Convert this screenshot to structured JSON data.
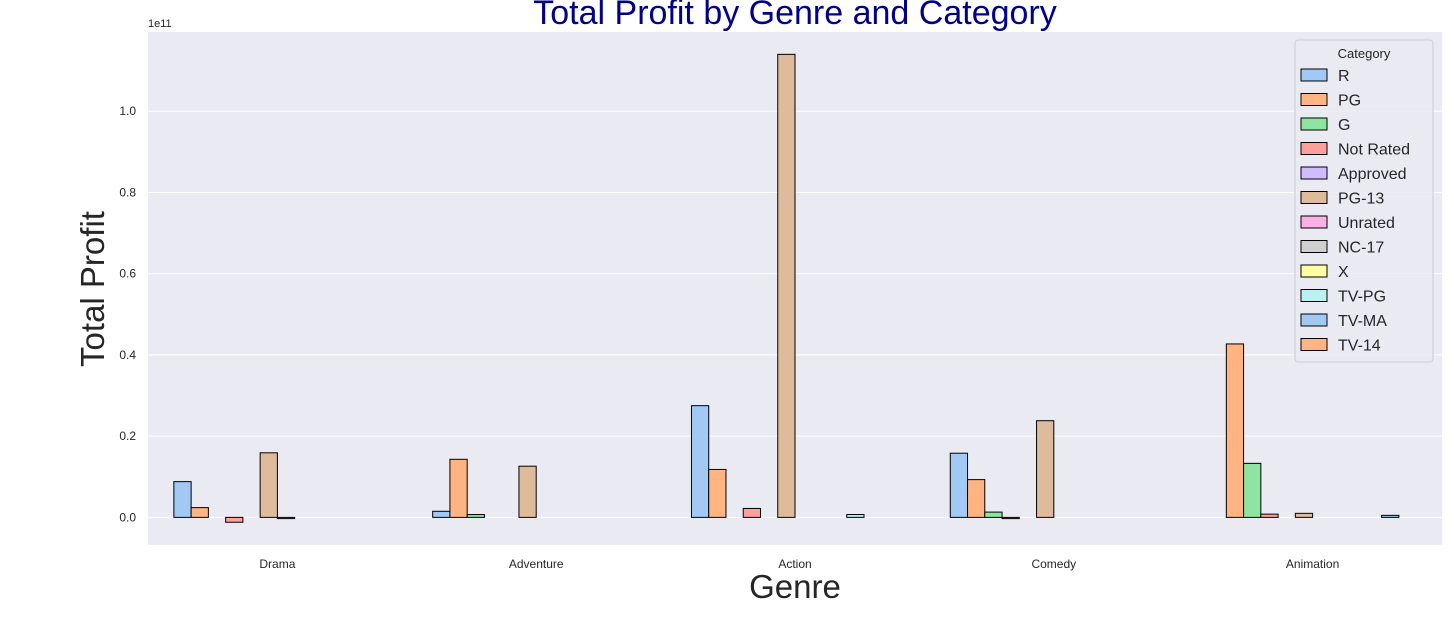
{
  "chart_data": {
    "type": "bar",
    "title": "Total Profit by Genre and Category",
    "xlabel": "Genre",
    "ylabel": "Total Profit",
    "y_offset_text": "1e11",
    "y_scale": 100000000000,
    "ylim": [
      -0.068,
      1.195
    ],
    "yticks": [
      0.0,
      0.2,
      0.4,
      0.6,
      0.8,
      1.0
    ],
    "ytick_labels": [
      "0.0",
      "0.2",
      "0.4",
      "0.6",
      "0.8",
      "1.0"
    ],
    "grid": true,
    "legend_title": "Category",
    "legend_position": "top-right",
    "categories": [
      "Drama",
      "Adventure",
      "Action",
      "Comedy",
      "Animation"
    ],
    "series": [
      {
        "name": "R",
        "color": "#a1c9f4",
        "values": [
          0.088,
          0.015,
          0.275,
          0.158,
          null
        ]
      },
      {
        "name": "PG",
        "color": "#ffb482",
        "values": [
          0.024,
          0.143,
          0.118,
          0.093,
          0.427
        ]
      },
      {
        "name": "G",
        "color": "#8de5a1",
        "values": [
          null,
          0.007,
          null,
          0.013,
          0.133
        ]
      },
      {
        "name": "Not Rated",
        "color": "#ff9f9b",
        "values": [
          -0.012,
          null,
          0.022,
          -0.003,
          0.008
        ]
      },
      {
        "name": "Approved",
        "color": "#d0bbff",
        "values": [
          null,
          null,
          null,
          null,
          null
        ]
      },
      {
        "name": "PG-13",
        "color": "#debb9b",
        "values": [
          0.159,
          0.126,
          1.14,
          0.238,
          0.01
        ]
      },
      {
        "name": "Unrated",
        "color": "#fab0e4",
        "values": [
          -0.003,
          null,
          null,
          null,
          null
        ]
      },
      {
        "name": "NC-17",
        "color": "#cfcfcf",
        "values": [
          null,
          null,
          null,
          null,
          null
        ]
      },
      {
        "name": "X",
        "color": "#fffea3",
        "values": [
          null,
          null,
          null,
          null,
          null
        ]
      },
      {
        "name": "TV-PG",
        "color": "#b9f2f0",
        "values": [
          null,
          null,
          0.007,
          null,
          null
        ]
      },
      {
        "name": "TV-MA",
        "color": "#a1c9f4",
        "values": [
          null,
          null,
          null,
          null,
          0.005
        ]
      },
      {
        "name": "TV-14",
        "color": "#ffb482",
        "values": [
          null,
          null,
          null,
          null,
          null
        ]
      }
    ]
  }
}
